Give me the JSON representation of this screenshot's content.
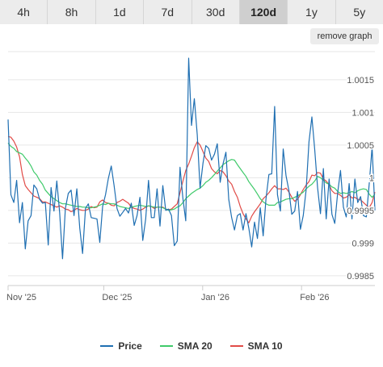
{
  "range_tabs": [
    {
      "label": "4h",
      "active": false
    },
    {
      "label": "8h",
      "active": false
    },
    {
      "label": "1d",
      "active": false
    },
    {
      "label": "7d",
      "active": false
    },
    {
      "label": "30d",
      "active": false
    },
    {
      "label": "120d",
      "active": true
    },
    {
      "label": "1y",
      "active": false
    },
    {
      "label": "5y",
      "active": false
    }
  ],
  "remove_graph_label": "remove graph",
  "chart_data": {
    "type": "line",
    "x_tick_labels": [
      "Nov '25",
      "Dec '25",
      "Jan '26",
      "Feb '26"
    ],
    "x_tick_days": [
      0,
      30,
      61,
      92
    ],
    "x_range_days": [
      0,
      115
    ],
    "y_ticks": [
      0.9985,
      0.999,
      0.9995,
      1.0,
      1.0005,
      1.001,
      1.0015
    ],
    "y_tick_labels": [
      "0.9985",
      "0.999",
      "0.9995",
      "1",
      "1.0005",
      "1.001",
      "1.0015"
    ],
    "ylim": [
      0.99835,
      1.00193
    ],
    "grid": true,
    "legend_position": "bottom-center",
    "series": [
      {
        "name": "Price",
        "color": "#1f6fb2",
        "values": [
          1.00089,
          0.99974,
          0.99962,
          0.99996,
          0.99931,
          0.99962,
          0.99891,
          0.99934,
          0.99942,
          0.99989,
          0.99983,
          0.99967,
          0.99961,
          0.99962,
          0.99897,
          0.99985,
          0.99949,
          0.99995,
          0.99947,
          0.99876,
          0.99953,
          0.99976,
          0.99981,
          0.99942,
          0.99983,
          0.99923,
          0.99884,
          0.99953,
          0.9996,
          0.99939,
          0.99938,
          0.99937,
          0.99901,
          0.99956,
          0.99974,
          0.99999,
          1.00018,
          0.99988,
          0.99953,
          0.99941,
          0.99947,
          0.99953,
          0.99946,
          0.99961,
          0.99927,
          0.99942,
          0.9997,
          0.99904,
          0.99937,
          0.99996,
          0.99939,
          0.99939,
          0.99983,
          0.99926,
          0.99988,
          0.9995,
          0.99952,
          0.99942,
          0.99896,
          0.99903,
          1.00016,
          0.99968,
          0.99934,
          1.00183,
          1.0008,
          1.00121,
          1.00066,
          0.99984,
          1.00022,
          1.00049,
          1.00045,
          1.00027,
          1.00036,
          1.00052,
          0.99993,
          1.00021,
          1.00039,
          0.99967,
          0.99939,
          0.9992,
          0.99942,
          0.99945,
          0.9992,
          0.99945,
          0.99923,
          0.99894,
          0.99932,
          0.99907,
          0.99954,
          0.99911,
          0.99968,
          1.00005,
          1.00006,
          1.00109,
          0.99974,
          0.99949,
          1.00044,
          1.00003,
          0.9998,
          0.99944,
          0.99949,
          0.99979,
          0.99921,
          0.99942,
          0.99982,
          1.00055,
          1.00093,
          1.00043,
          0.99984,
          0.99945,
          1.00014,
          0.99937,
          0.99998,
          0.99944,
          0.9993,
          0.99977,
          1.00011,
          0.99955,
          0.9994,
          0.99991,
          0.99937,
          0.99998,
          0.99962,
          0.99971,
          0.99942,
          0.9994,
          0.9999,
          1.00047,
          0.9995
        ]
      },
      {
        "name": "SMA 20",
        "color": "#3fca6a",
        "values": [
          1.00053,
          1.00048,
          1.00045,
          1.0004,
          1.00038,
          1.00036,
          1.0003,
          1.00025,
          1.00018,
          1.00009,
          1.00004,
          0.99996,
          0.9999,
          0.99981,
          0.99976,
          0.99971,
          0.99968,
          0.99965,
          0.99962,
          0.9996,
          0.9996,
          0.99959,
          0.99958,
          0.99957,
          0.99956,
          0.99956,
          0.99955,
          0.99955,
          0.99954,
          0.99954,
          0.99955,
          0.99956,
          0.99958,
          0.9996,
          0.99959,
          0.99961,
          0.9996,
          0.9996,
          0.99958,
          0.99956,
          0.99955,
          0.99954,
          0.99953,
          0.99955,
          0.99956,
          0.99957,
          0.99958,
          0.99957,
          0.99956,
          0.99957,
          0.99956,
          0.99955,
          0.99955,
          0.99955,
          0.99954,
          0.99952,
          0.9995,
          0.99951,
          0.99952,
          0.99955,
          0.99957,
          0.99962,
          0.99968,
          0.99972,
          0.99976,
          0.99979,
          0.99982,
          0.99984,
          0.99988,
          0.99993,
          0.99996,
          1.0,
          1.00005,
          1.0001,
          1.00015,
          1.0002,
          1.00023,
          1.00026,
          1.00028,
          1.00027,
          1.0002,
          1.00014,
          1.00008,
          1.00002,
          0.99994,
          0.99988,
          0.99982,
          0.99975,
          0.99968,
          0.99963,
          0.9996,
          0.99958,
          0.99958,
          0.99958,
          0.99962,
          0.99963,
          0.99965,
          0.99967,
          0.99968,
          0.99968,
          0.9997,
          0.99972,
          0.99975,
          0.99978,
          0.99983,
          0.99987,
          0.9999,
          0.99995,
          1.00002,
          1.0,
          0.99996,
          0.99992,
          0.9999,
          0.99986,
          0.99984,
          0.99979,
          0.99976,
          0.99977,
          0.99976,
          0.99977,
          0.99979,
          0.99977,
          0.9998,
          0.99982,
          0.99983,
          0.99982,
          0.99975,
          0.9997,
          0.99975
        ]
      },
      {
        "name": "SMA 10",
        "color": "#e14b47",
        "values": [
          1.00063,
          1.00062,
          1.00056,
          1.00047,
          1.00032,
          1.00005,
          0.99988,
          0.99982,
          0.99977,
          0.99972,
          0.9997,
          0.99968,
          0.99963,
          0.99963,
          0.99961,
          0.99959,
          0.99957,
          0.99955,
          0.99957,
          0.99955,
          0.99952,
          0.99951,
          0.99948,
          0.9995,
          0.99953,
          0.99951,
          0.9995,
          0.9995,
          0.99952,
          0.99956,
          0.99954,
          0.99955,
          0.99963,
          0.99966,
          0.99962,
          0.99961,
          0.99958,
          0.99957,
          0.99962,
          0.99964,
          0.99967,
          0.99964,
          0.99961,
          0.99955,
          0.99953,
          0.99952,
          0.9995,
          0.99952,
          0.99955,
          0.99957,
          0.99956,
          0.99953,
          0.99955,
          0.99955,
          0.99955,
          0.99952,
          0.99951,
          0.99952,
          0.99956,
          0.9996,
          0.99977,
          0.99995,
          1.00011,
          1.00021,
          1.00033,
          1.00046,
          1.00055,
          1.0005,
          1.0004,
          1.0003,
          1.00025,
          1.00014,
          1.00009,
          1.00006,
          1.00011,
          1.00009,
          1.00003,
          0.99995,
          0.9999,
          0.99979,
          0.9997,
          0.99956,
          0.99945,
          0.99937,
          0.99931,
          0.99941,
          0.99948,
          0.99954,
          0.9996,
          0.99968,
          0.99972,
          0.99977,
          0.99983,
          0.99988,
          0.99983,
          0.99983,
          0.99982,
          0.99984,
          0.99978,
          0.9997,
          0.99964,
          0.99967,
          0.99974,
          0.99982,
          0.99989,
          0.99994,
          1.00004,
          1.00003,
          1.00008,
          1.00007,
          0.99998,
          0.99995,
          0.99989,
          0.9998,
          0.99976,
          0.99976,
          0.99973,
          0.99969,
          0.9997,
          0.99974,
          0.99969,
          0.9997,
          0.99967,
          0.99966,
          0.99962,
          0.99958,
          0.99954,
          0.99962,
          0.99978
        ]
      }
    ]
  }
}
